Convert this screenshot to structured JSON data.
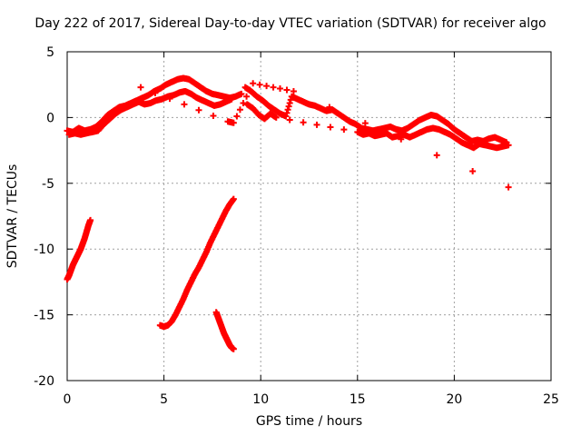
{
  "chart_data": {
    "type": "scatter",
    "title": "Day 222 of 2017, Sidereal Day-to-day VTEC variation (SDTVAR) for receiver algo",
    "xlabel": "GPS time / hours",
    "ylabel": "SDTVAR / TECUs",
    "xlim": [
      0,
      25
    ],
    "ylim": [
      -20,
      5
    ],
    "xticks": [
      0,
      5,
      10,
      15,
      20,
      25
    ],
    "yticks": [
      5,
      0,
      -5,
      -10,
      -15,
      -20
    ],
    "xtick_labels": [
      "0",
      "5",
      "10",
      "15",
      "20",
      "25"
    ],
    "ytick_labels": [
      "5",
      "0",
      "-5",
      "-10",
      "-15",
      "-20"
    ],
    "grid": true,
    "marker": "+",
    "color": "#ff0000",
    "series": [
      {
        "name": "main-band-upper",
        "x": [
          0.0,
          0.3,
          0.6,
          0.9,
          1.2,
          1.5,
          1.8,
          2.1,
          2.4,
          2.7,
          3.0,
          3.3,
          3.6,
          3.9,
          4.2,
          4.5,
          4.8,
          5.1,
          5.4,
          5.7,
          6.0,
          6.3,
          6.6,
          6.9,
          7.2,
          7.5,
          7.8,
          8.1,
          8.4,
          8.7,
          9.0
        ],
        "y": [
          -1.0,
          -1.1,
          -0.8,
          -1.0,
          -0.9,
          -0.7,
          -0.3,
          0.2,
          0.5,
          0.8,
          0.9,
          1.1,
          1.3,
          1.5,
          1.7,
          2.0,
          2.2,
          2.5,
          2.7,
          2.9,
          3.0,
          2.9,
          2.6,
          2.3,
          2.0,
          1.8,
          1.7,
          1.6,
          1.5,
          1.6,
          1.8
        ]
      },
      {
        "name": "main-band-lower",
        "x": [
          0.1,
          0.4,
          0.7,
          1.0,
          1.3,
          1.6,
          1.9,
          2.2,
          2.5,
          2.8,
          3.1,
          3.4,
          3.7,
          4.0,
          4.3,
          4.6,
          4.9,
          5.2,
          5.5,
          5.8,
          6.1,
          6.4,
          6.7,
          7.0,
          7.3,
          7.6,
          7.9,
          8.2,
          8.5
        ],
        "y": [
          -1.3,
          -1.2,
          -1.3,
          -1.2,
          -1.1,
          -1.0,
          -0.5,
          -0.1,
          0.3,
          0.6,
          0.8,
          1.0,
          1.2,
          1.0,
          1.1,
          1.3,
          1.4,
          1.6,
          1.7,
          1.9,
          2.0,
          1.8,
          1.5,
          1.3,
          1.1,
          0.9,
          1.0,
          1.2,
          1.4
        ]
      },
      {
        "name": "main-band-mid",
        "x": [
          9.2,
          9.5,
          9.8,
          10.1,
          10.4,
          10.7,
          11.0,
          11.3,
          11.6,
          11.9,
          12.2,
          12.5,
          12.8,
          13.1,
          13.4,
          13.7,
          14.0,
          14.3,
          14.6,
          14.9,
          15.2,
          15.5,
          15.8,
          16.1,
          16.4,
          16.7,
          17.0,
          17.3,
          17.6,
          17.9,
          18.2,
          18.5,
          18.8,
          19.1,
          19.4,
          19.7,
          20.0,
          20.3,
          20.6,
          20.9,
          21.2,
          21.5,
          21.8,
          22.1,
          22.4,
          22.7
        ],
        "y": [
          2.3,
          2.0,
          1.6,
          1.3,
          0.9,
          0.6,
          0.3,
          0.1,
          1.6,
          1.4,
          1.2,
          1.0,
          0.9,
          0.7,
          0.5,
          0.6,
          0.3,
          0.0,
          -0.3,
          -0.5,
          -0.8,
          -0.9,
          -1.0,
          -0.9,
          -0.8,
          -0.7,
          -0.9,
          -1.0,
          -0.8,
          -0.5,
          -0.2,
          0.0,
          0.2,
          0.1,
          -0.2,
          -0.5,
          -0.9,
          -1.2,
          -1.5,
          -1.8,
          -1.7,
          -1.8,
          -1.6,
          -1.5,
          -1.7,
          -1.9
        ]
      },
      {
        "name": "main-band-mid-lower",
        "x": [
          9.3,
          9.6,
          9.9,
          10.2,
          10.5,
          10.8,
          15.0,
          15.3,
          15.6,
          15.9,
          16.2,
          16.5,
          16.8,
          17.1,
          17.4,
          17.7,
          18.0,
          18.3,
          18.6,
          18.9,
          19.2,
          19.5,
          19.8,
          20.1,
          20.4,
          20.7,
          21.0,
          21.3,
          21.6,
          21.9,
          22.2,
          22.5,
          22.8
        ],
        "y": [
          1.0,
          0.7,
          0.2,
          -0.1,
          0.3,
          0.0,
          -1.1,
          -1.3,
          -1.2,
          -1.4,
          -1.3,
          -1.2,
          -1.5,
          -1.4,
          -1.3,
          -1.5,
          -1.3,
          -1.1,
          -0.9,
          -0.8,
          -0.9,
          -1.1,
          -1.3,
          -1.6,
          -1.9,
          -2.1,
          -2.3,
          -2.0,
          -2.1,
          -2.2,
          -2.3,
          -2.2,
          -2.1
        ]
      },
      {
        "name": "outliers",
        "x": [
          3.8,
          8.3,
          8.6,
          9.6,
          11.7,
          22.8
        ],
        "y": [
          2.3,
          -0.3,
          -0.4,
          2.6,
          2.0,
          -5.3
        ]
      },
      {
        "name": "track-1",
        "x": [
          0.0,
          0.1,
          0.2,
          0.3,
          0.4,
          0.5,
          0.6,
          0.7,
          0.8,
          0.9,
          1.0,
          1.1,
          1.2
        ],
        "y": [
          -12.3,
          -12.0,
          -11.6,
          -11.2,
          -10.9,
          -10.6,
          -10.3,
          -10.0,
          -9.6,
          -9.2,
          -8.7,
          -8.2,
          -7.8
        ]
      },
      {
        "name": "track-2",
        "x": [
          4.8,
          5.0,
          5.2,
          5.4,
          5.6,
          5.8,
          6.0,
          6.2,
          6.4,
          6.6,
          6.8,
          7.0,
          7.2,
          7.4,
          7.6,
          7.8,
          8.0,
          8.2,
          8.4,
          8.6
        ],
        "y": [
          -15.8,
          -15.9,
          -15.8,
          -15.5,
          -15.0,
          -14.4,
          -13.8,
          -13.1,
          -12.5,
          -11.9,
          -11.4,
          -10.8,
          -10.2,
          -9.5,
          -8.9,
          -8.3,
          -7.7,
          -7.1,
          -6.6,
          -6.2
        ]
      },
      {
        "name": "track-3",
        "x": [
          7.7,
          7.8,
          7.9,
          8.0,
          8.1,
          8.2,
          8.3,
          8.4,
          8.5,
          8.6
        ],
        "y": [
          -14.8,
          -15.2,
          -15.6,
          -16.0,
          -16.4,
          -16.7,
          -17.0,
          -17.3,
          -17.5,
          -17.6
        ]
      }
    ]
  }
}
